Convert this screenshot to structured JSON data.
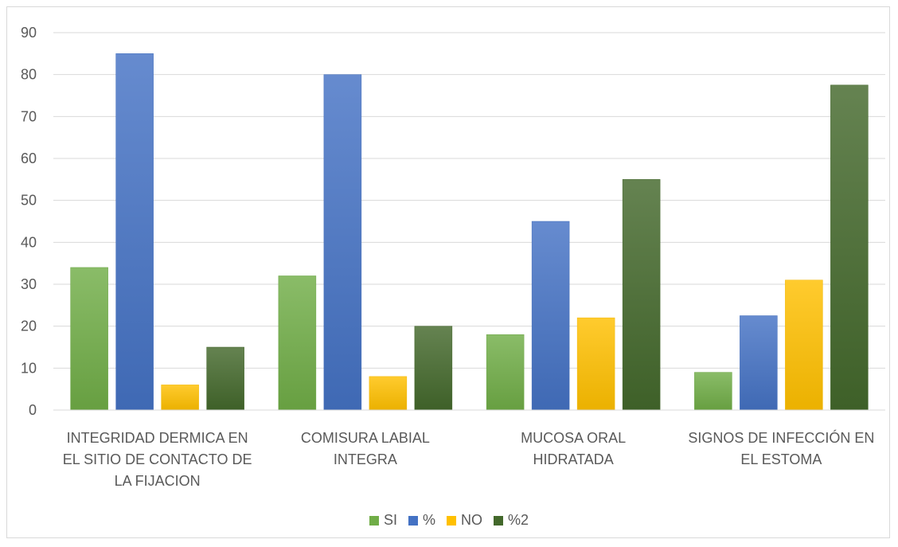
{
  "chart_data": {
    "type": "bar",
    "title": "",
    "xlabel": "",
    "ylabel": "",
    "ylim": [
      0,
      90
    ],
    "yticks": [
      0,
      10,
      20,
      30,
      40,
      50,
      60,
      70,
      80,
      90
    ],
    "grid": true,
    "legend_position": "bottom",
    "categories": [
      [
        "INTEGRIDAD DERMICA EN",
        "EL SITIO DE CONTACTO DE",
        "LA FIJACION"
      ],
      [
        "COMISURA LABIAL",
        "INTEGRA"
      ],
      [
        "MUCOSA ORAL",
        "HIDRATADA"
      ],
      [
        "SIGNOS DE INFECCIÓN EN",
        "EL ESTOMA"
      ]
    ],
    "series": [
      {
        "name": "SI",
        "color": "#70ad47",
        "values": [
          34,
          32,
          18,
          9
        ]
      },
      {
        "name": "%",
        "color": "#4472c4",
        "values": [
          85,
          80,
          45,
          22.5
        ]
      },
      {
        "name": "NO",
        "color": "#ffc000",
        "values": [
          6,
          8,
          22,
          31
        ]
      },
      {
        "name": "%2",
        "color": "#43682b",
        "values": [
          15,
          20,
          55,
          77.5
        ]
      }
    ]
  }
}
